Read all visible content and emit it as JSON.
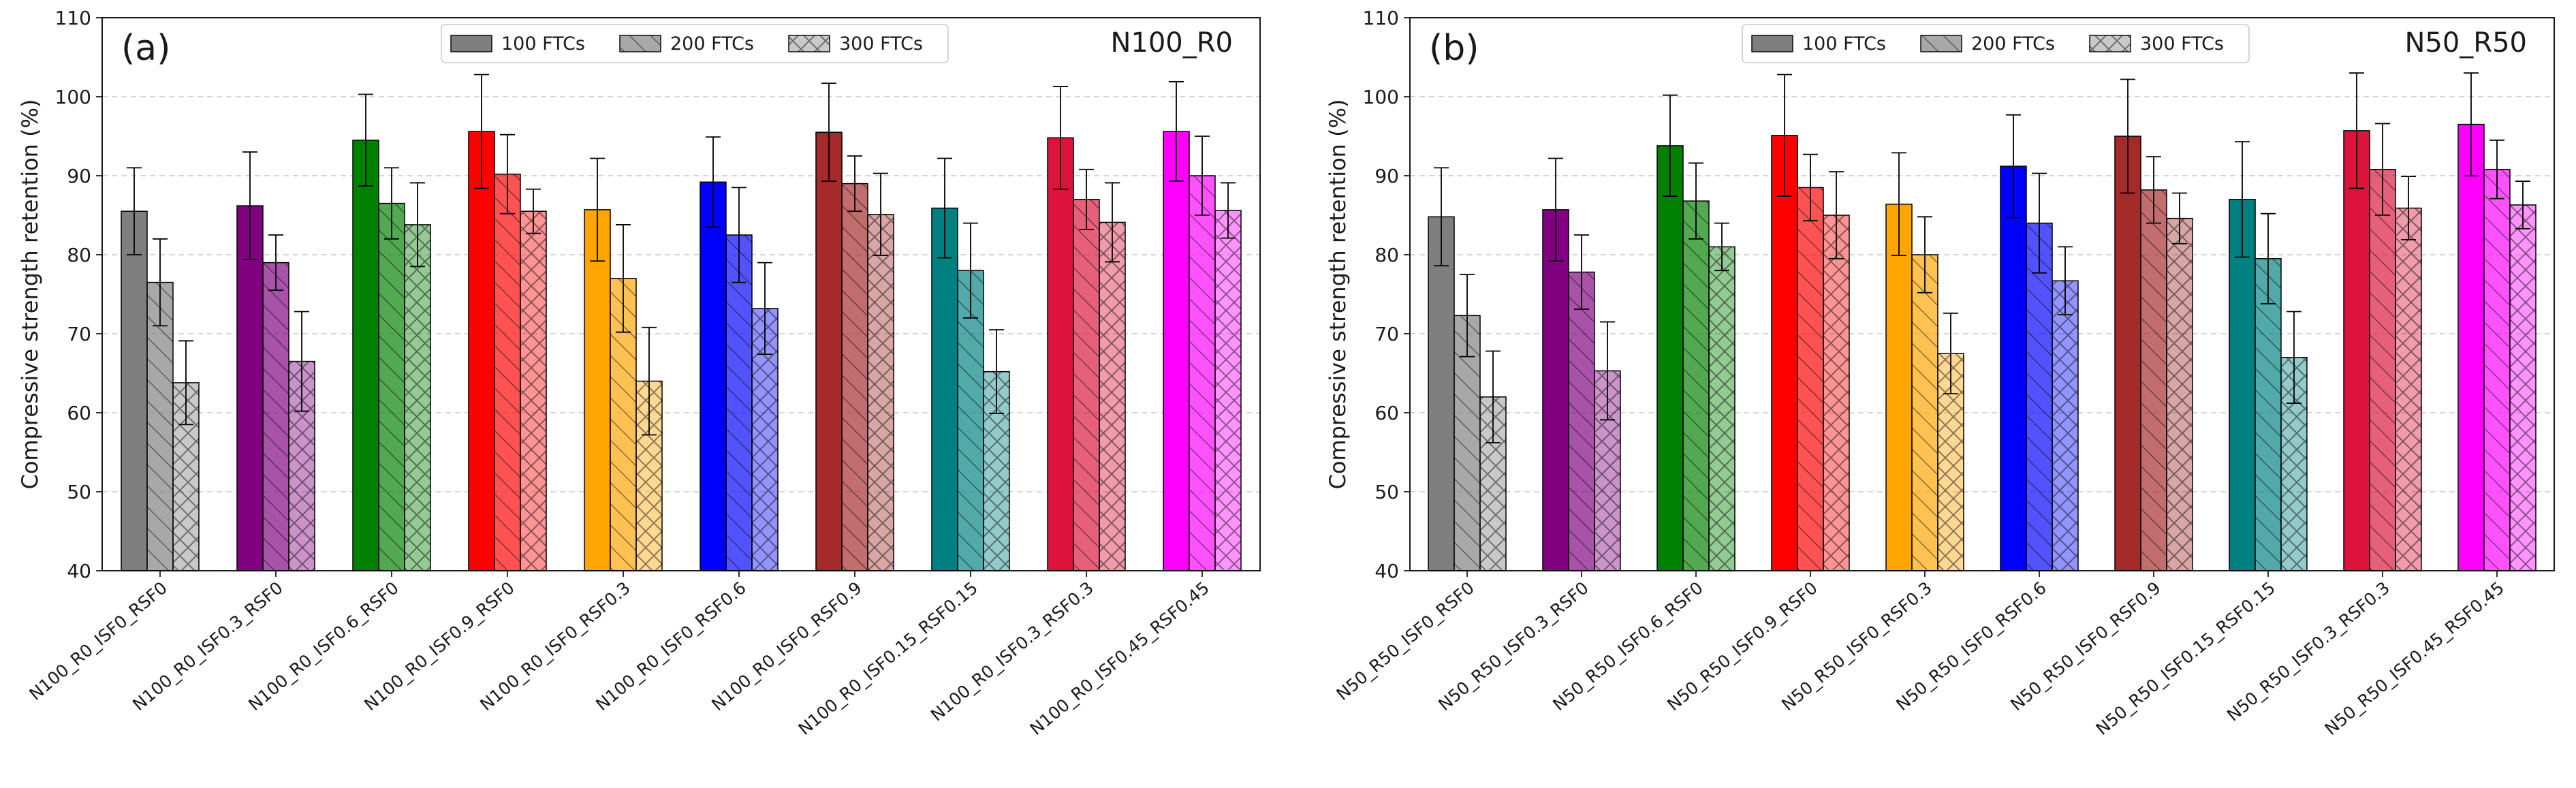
{
  "chart_data": [
    {
      "type": "bar",
      "panel_label": "(a)",
      "title": "N100_R0",
      "ylabel": "Compressive strength retention (%)",
      "xlabel": "",
      "ylim": [
        40,
        110
      ],
      "yticks": [
        40,
        50,
        60,
        70,
        80,
        90,
        100,
        110
      ],
      "grid": "horizontal dashed",
      "legend_position": "top-center",
      "categories": [
        "N100_R0_ISF0_RSF0",
        "N100_R0_ISF0.3_RSF0",
        "N100_R0_ISF0.6_RSF0",
        "N100_R0_ISF0.9_RSF0",
        "N100_R0_ISF0_RSF0.3",
        "N100_R0_ISF0_RSF0.6",
        "N100_R0_ISF0_RSF0.9",
        "N100_R0_ISF0.15_RSF0.15",
        "N100_R0_ISF0.3_RSF0.3",
        "N100_R0_ISF0.45_RSF0.45"
      ],
      "category_colors": [
        "#7f7f7f",
        "#800080",
        "#008000",
        "#ff0000",
        "#ffa500",
        "#0000ff",
        "#a52a2a",
        "#008080",
        "#dc143c",
        "#ff00ff"
      ],
      "series": [
        {
          "name": "100 FTCs",
          "values": [
            85.5,
            86.2,
            94.5,
            95.6,
            85.7,
            89.2,
            95.5,
            85.9,
            94.8,
            95.6
          ],
          "errors": [
            5.5,
            6.8,
            5.8,
            7.2,
            6.5,
            5.7,
            6.2,
            6.3,
            6.5,
            6.3
          ]
        },
        {
          "name": "200 FTCs",
          "values": [
            76.5,
            79.0,
            86.5,
            90.2,
            77.0,
            82.5,
            89.0,
            78.0,
            87.0,
            90.0
          ],
          "errors": [
            5.5,
            3.5,
            4.5,
            5.0,
            6.8,
            6.0,
            3.5,
            6.0,
            3.8,
            5.0
          ]
        },
        {
          "name": "300 FTCs",
          "values": [
            63.8,
            66.5,
            83.8,
            85.5,
            64.0,
            73.2,
            85.1,
            65.2,
            84.1,
            85.6
          ],
          "errors": [
            5.3,
            6.3,
            5.3,
            2.8,
            6.8,
            5.8,
            5.2,
            5.3,
            5.0,
            3.5
          ]
        }
      ]
    },
    {
      "type": "bar",
      "panel_label": "(b)",
      "title": "N50_R50",
      "ylabel": "Compressive strength retention (%)",
      "xlabel": "",
      "ylim": [
        40,
        110
      ],
      "yticks": [
        40,
        50,
        60,
        70,
        80,
        90,
        100,
        110
      ],
      "grid": "horizontal dashed",
      "legend_position": "top-center",
      "categories": [
        "N50_R50_ISF0_RSF0",
        "N50_R50_ISF0.3_RSF0",
        "N50_R50_ISF0.6_RSF0",
        "N50_R50_ISF0.9_RSF0",
        "N50_R50_ISF0_RSF0.3",
        "N50_R50_ISF0_RSF0.6",
        "N50_R50_ISF0_RSF0.9",
        "N50_R50_ISF0.15_RSF0.15",
        "N50_R50_ISF0.3_RSF0.3",
        "N50_R50_ISF0.45_RSF0.45"
      ],
      "category_colors": [
        "#7f7f7f",
        "#800080",
        "#008000",
        "#ff0000",
        "#ffa500",
        "#0000ff",
        "#a52a2a",
        "#008080",
        "#dc143c",
        "#ff00ff"
      ],
      "series": [
        {
          "name": "100 FTCs",
          "values": [
            84.8,
            85.7,
            93.8,
            95.1,
            86.4,
            91.2,
            95.0,
            87.0,
            95.7,
            96.5
          ],
          "errors": [
            6.2,
            6.5,
            6.4,
            7.7,
            6.5,
            6.5,
            7.2,
            7.3,
            7.3,
            6.5
          ]
        },
        {
          "name": "200 FTCs",
          "values": [
            72.3,
            77.8,
            86.8,
            88.5,
            80.0,
            84.0,
            88.2,
            79.5,
            90.8,
            90.8
          ],
          "errors": [
            5.2,
            4.7,
            4.8,
            4.2,
            4.8,
            6.3,
            4.2,
            5.7,
            5.8,
            3.7
          ]
        },
        {
          "name": "300 FTCs",
          "values": [
            62.0,
            65.3,
            81.0,
            85.0,
            67.5,
            76.7,
            84.6,
            67.0,
            85.9,
            86.3
          ],
          "errors": [
            5.8,
            6.2,
            3.0,
            5.5,
            5.1,
            4.3,
            3.2,
            5.8,
            4.0,
            3.0
          ]
        }
      ]
    }
  ]
}
